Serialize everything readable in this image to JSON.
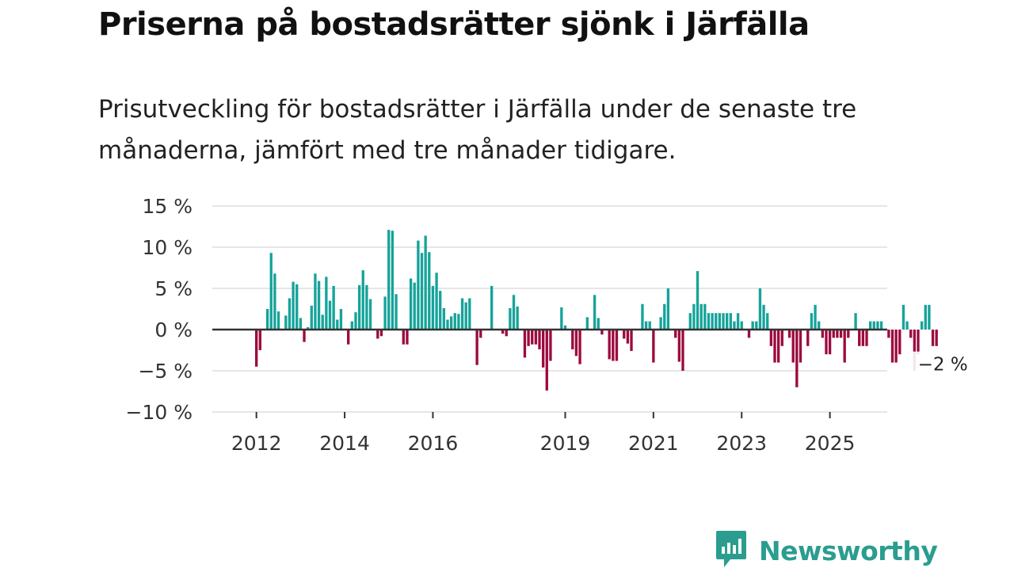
{
  "title": "Priserna på bostadsrätter sjönk i Järfälla",
  "subtitle": "Prisutveckling för bostadsrätter i Järfälla under de senaste tre månaderna, jämfört med tre månader tidigare.",
  "brand": {
    "name": "Newsworthy",
    "icon": "newsworthy-logo-icon",
    "color": "#2a9d8f"
  },
  "colors": {
    "positive": "#16a39a",
    "negative": "#9c0a3f",
    "grid": "#dddddd",
    "zero": "#333333"
  },
  "chart_data": {
    "type": "bar",
    "title": "Priserna på bostadsrätter sjönk i Järfälla",
    "ylabel": "",
    "xlabel": "",
    "ylim": [
      -10,
      15
    ],
    "yticks": [
      15,
      10,
      5,
      0,
      -5,
      -10
    ],
    "ytick_labels": [
      "15 %",
      "10 %",
      "5 %",
      "0 %",
      "−5 %",
      "−10 %"
    ],
    "x_start": "2012-01",
    "x_frequency": "monthly",
    "xlim_years": [
      2011,
      2026.3
    ],
    "xticks": [
      {
        "year": 2012,
        "label": "2012"
      },
      {
        "year": 2014,
        "label": "2014"
      },
      {
        "year": 2016,
        "label": "2016"
      },
      {
        "year": 2019,
        "label": "2019"
      },
      {
        "year": 2021,
        "label": "2021"
      },
      {
        "year": 2023,
        "label": "2023"
      },
      {
        "year": 2025,
        "label": "2025"
      }
    ],
    "values": [
      -4.5,
      -2.5,
      0,
      2.5,
      9.3,
      6.8,
      2.2,
      0,
      1.7,
      3.8,
      5.8,
      5.5,
      1.4,
      -1.5,
      0.3,
      2.9,
      6.8,
      5.9,
      1.8,
      6.4,
      3.5,
      5.3,
      1.2,
      2.5,
      0,
      -1.8,
      1.0,
      2.1,
      5.4,
      7.2,
      5.4,
      3.7,
      0,
      -1.1,
      -0.8,
      4.0,
      12.1,
      12.0,
      4.3,
      0,
      -1.8,
      -1.8,
      6.2,
      5.7,
      10.8,
      9.3,
      11.4,
      9.4,
      5.3,
      6.9,
      4.7,
      2.6,
      1.2,
      1.6,
      2.0,
      1.9,
      3.8,
      3.3,
      3.8,
      0,
      -4.3,
      -1.0,
      0,
      0,
      5.3,
      0,
      0,
      -0.5,
      -0.8,
      2.6,
      4.2,
      2.8,
      0,
      -3.4,
      -2.0,
      -1.8,
      -1.8,
      -2.4,
      -4.6,
      -7.4,
      -3.8,
      0,
      0,
      2.7,
      0.5,
      0,
      -2.4,
      -3.2,
      -4.2,
      0,
      1.5,
      0,
      4.2,
      1.4,
      -0.6,
      0,
      -3.6,
      -3.8,
      -3.8,
      0,
      -1.1,
      -1.7,
      -2.6,
      0,
      0,
      3.1,
      1.0,
      1.0,
      -4.0,
      0,
      1.5,
      3.1,
      5.0,
      0,
      -1.0,
      -3.9,
      -5.0,
      0,
      2.0,
      3.1,
      7.1,
      3.1,
      3.1,
      2.0,
      2.0,
      2.0,
      2.0,
      2.0,
      2.0,
      2.0,
      1.0,
      2.0,
      1.0,
      0,
      -1.0,
      1.0,
      1.0,
      5.0,
      3.0,
      2.0,
      -2.0,
      -4.0,
      -4.0,
      -2.0,
      0,
      -1.0,
      -4.0,
      -7.0,
      -4.0,
      0,
      -2.0,
      2.0,
      3.0,
      1.0,
      -1.0,
      -3.0,
      -3.0,
      -1.0,
      -1.0,
      -1.0,
      -4.0,
      -1.0,
      0,
      2.0,
      -2.0,
      -2.0,
      -2.0,
      1.0,
      1.0,
      1.0,
      1.0,
      0,
      -1.0,
      -4.0,
      -4.0,
      -3.0,
      3.0,
      1.0,
      -1.0,
      -5.0,
      -3.0,
      1.0,
      3.0,
      3.0,
      -2.0,
      -2.0
    ],
    "last_value_label": "−2 %"
  }
}
